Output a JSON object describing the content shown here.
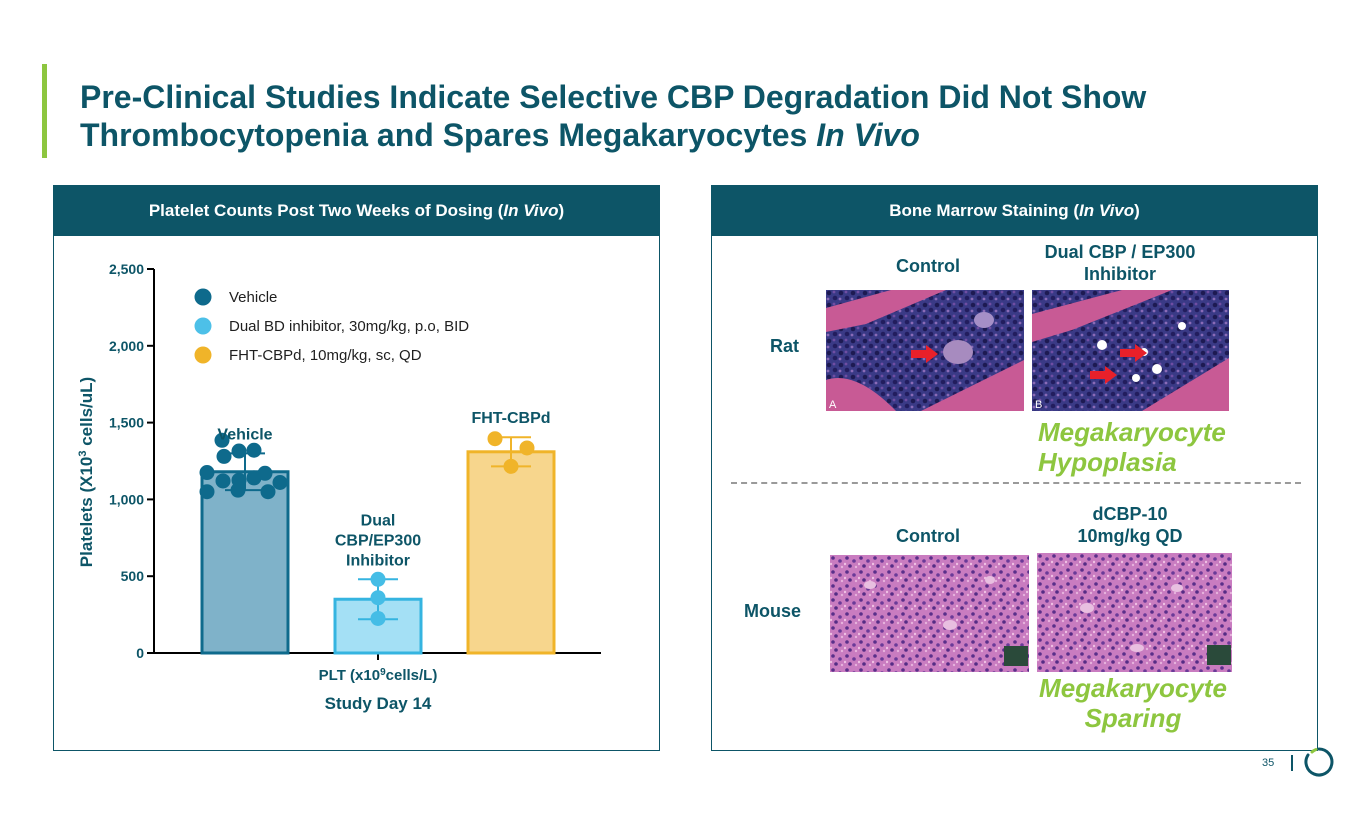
{
  "title": {
    "line1": "Pre-Clinical Studies Indicate Selective CBP Degradation Did Not Show",
    "line2_prefix": "Thrombocytopenia and Spares Megakaryocytes ",
    "line2_italic": "In Vivo"
  },
  "left_panel": {
    "header_prefix": "Platelet Counts Post Two Weeks of Dosing (",
    "header_italic": "In Vivo",
    "header_suffix": ")"
  },
  "right_panel": {
    "header_prefix": "Bone Marrow Staining (",
    "header_italic": "In Vivo",
    "header_suffix": ")",
    "rat": {
      "row_label": "Rat",
      "control_label": "Control",
      "treatment_label_line1": "Dual CBP / EP300",
      "treatment_label_line2": "Inhibitor",
      "panel_a_letter": "A",
      "panel_b_letter": "B",
      "finding_line1": "Megakaryocyte",
      "finding_line2": "Hypoplasia"
    },
    "mouse": {
      "row_label": "Mouse",
      "control_label": "Control",
      "treatment_label_line1": "dCBP-10",
      "treatment_label_line2": "10mg/kg QD",
      "finding_line1": "Megakaryocyte",
      "finding_line2": "Sparing"
    }
  },
  "chart_data": {
    "type": "bar",
    "ylabel_prefix": "Platelets  (X10",
    "ylabel_sup": "3",
    "ylabel_suffix": " cells/uL)",
    "xlabel_prefix": "PLT (x10",
    "xlabel_sup": "9",
    "xlabel_suffix": "cells/L)",
    "xlabel2": "Study Day 14",
    "ylim": [
      0,
      2500
    ],
    "yticks": [
      0,
      500,
      1000,
      1500,
      2000,
      2500
    ],
    "ytick_labels": [
      "0",
      "500",
      "1,000",
      "1,500",
      "2,000",
      "2,500"
    ],
    "legend": [
      {
        "label": "Vehicle",
        "color": "#0e6a8c"
      },
      {
        "label": "Dual BD inhibitor, 30mg/kg, p.o, BID",
        "color": "#4dc0e8"
      },
      {
        "label": "FHT-CBPd, 10mg/kg, sc, QD",
        "color": "#f0b429"
      }
    ],
    "series": [
      {
        "name": "Vehicle",
        "bar_label_lines": [
          "Vehicle"
        ],
        "value": 1180,
        "error": 120,
        "points": [
          1385,
          1280,
          1315,
          1320,
          1175,
          1120,
          1125,
          1140,
          1170,
          1110,
          1050,
          1060,
          1050
        ],
        "bar_fill": "#7fb2c9",
        "edge": "#0e6a8c",
        "dot": "#0e6a8c"
      },
      {
        "name": "Dual CBP/EP300 Inhibitor",
        "bar_label_lines": [
          "Dual",
          "CBP/EP300",
          "Inhibitor"
        ],
        "value": 350,
        "error": 130,
        "points": [
          480,
          360,
          225
        ],
        "bar_fill": "#a4e0f5",
        "edge": "#35b4e0",
        "dot": "#45bde6"
      },
      {
        "name": "FHT-CBPd",
        "bar_label_lines": [
          "FHT-CBPd"
        ],
        "value": 1310,
        "error": 95,
        "points": [
          1395,
          1335,
          1215
        ],
        "bar_fill": "#f7d68d",
        "edge": "#f0b429",
        "dot": "#f0b429"
      }
    ]
  },
  "footer": {
    "page_number": "35"
  },
  "colors": {
    "brand": "#0d5567",
    "accent": "#8dc63f",
    "arrow": "#e8202a"
  }
}
